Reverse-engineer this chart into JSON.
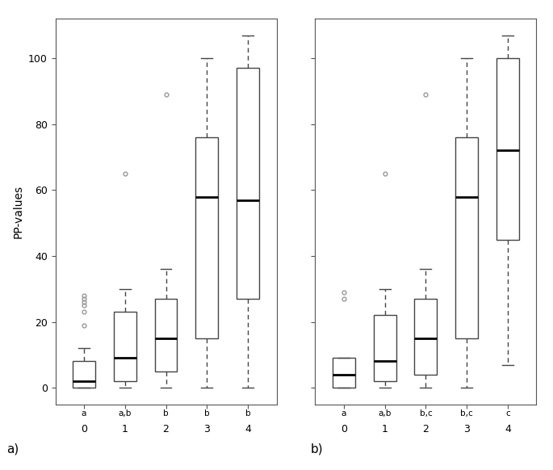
{
  "panel_a": {
    "boxes": [
      {
        "whislo": 0,
        "q1": 0,
        "med": 2,
        "q3": 8,
        "whishi": 12,
        "fliers": [
          19,
          23,
          25,
          26,
          27,
          28
        ]
      },
      {
        "whislo": 0,
        "q1": 2,
        "med": 9,
        "q3": 23,
        "whishi": 30,
        "fliers": [
          65
        ]
      },
      {
        "whislo": 0,
        "q1": 5,
        "med": 15,
        "q3": 27,
        "whishi": 36,
        "fliers": [
          89
        ]
      },
      {
        "whislo": 0,
        "q1": 15,
        "med": 58,
        "q3": 76,
        "whishi": 100,
        "fliers": []
      },
      {
        "whislo": 0,
        "q1": 27,
        "med": 57,
        "q3": 97,
        "whishi": 107,
        "fliers": []
      }
    ],
    "labels": [
      "0",
      "1",
      "2",
      "3",
      "4"
    ],
    "sig_labels": [
      "a",
      "a,b",
      "b",
      "b",
      "b"
    ],
    "ylabel": "PP-values",
    "panel_label": "a)",
    "ylim": [
      -5,
      112
    ]
  },
  "panel_b": {
    "boxes": [
      {
        "whislo": 0,
        "q1": 0,
        "med": 4,
        "q3": 9,
        "whishi": 9,
        "fliers": [
          27,
          29
        ]
      },
      {
        "whislo": 0,
        "q1": 2,
        "med": 8,
        "q3": 22,
        "whishi": 30,
        "fliers": [
          65
        ]
      },
      {
        "whislo": 0,
        "q1": 4,
        "med": 15,
        "q3": 27,
        "whishi": 36,
        "fliers": [
          89
        ]
      },
      {
        "whislo": 0,
        "q1": 15,
        "med": 58,
        "q3": 76,
        "whishi": 100,
        "fliers": []
      },
      {
        "whislo": 7,
        "q1": 45,
        "med": 72,
        "q3": 100,
        "whishi": 107,
        "fliers": []
      }
    ],
    "labels": [
      "0",
      "1",
      "2",
      "3",
      "4"
    ],
    "sig_labels": [
      "a",
      "a,b",
      "b,c",
      "b,c",
      "c"
    ],
    "panel_label": "b)",
    "ylim": [
      -5,
      112
    ]
  },
  "yticks": [
    0,
    20,
    40,
    60,
    80,
    100
  ],
  "box_color": "white",
  "box_edge_color": "#444444",
  "median_color": "black",
  "whisker_color": "#444444",
  "flier_color": "#999999",
  "background_color": "white",
  "fig_background": "white"
}
